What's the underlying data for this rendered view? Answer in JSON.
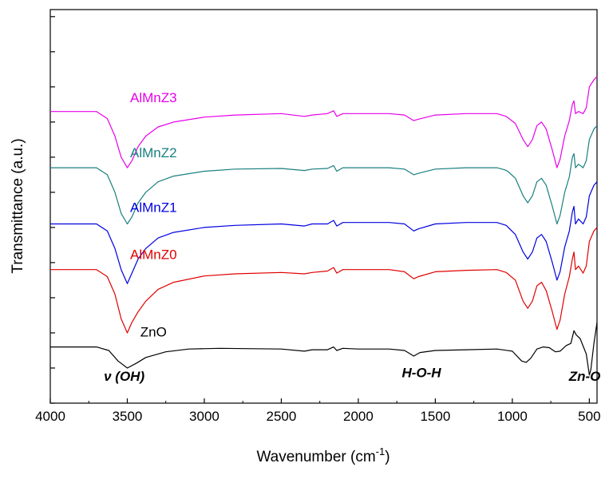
{
  "chart_data": {
    "type": "line",
    "title": "",
    "xlabel": "Wavenumber (cm",
    "xlabel_sup": "-1",
    "xlabel_end": ")",
    "ylabel": "Transmittance (a.u.)",
    "xlim": [
      4000,
      450
    ],
    "x_reversed": true,
    "x_ticks": [
      4000,
      3500,
      3000,
      2500,
      2000,
      1500,
      1000,
      500
    ],
    "x_tick_labels": [
      "4000",
      "3500",
      "3000",
      "2500",
      "2000",
      "1500",
      "1000",
      "500"
    ],
    "ylim": [
      0,
      5.6
    ],
    "y_ticks": [
      0,
      0.5,
      1,
      1.5,
      2,
      2.5,
      3,
      3.5,
      4,
      4.5,
      5,
      5.5
    ],
    "y_tick_labels": false,
    "grid": false,
    "legend": "inline labels",
    "annotations": [
      {
        "text": "ν (OH)",
        "x": 3520,
        "y": 0.32
      },
      {
        "text": "H-O-H",
        "x": 1590,
        "y": 0.37
      },
      {
        "text": "Zn-O",
        "x": 530,
        "y": 0.32
      }
    ],
    "series": [
      {
        "name": "ZnO",
        "color": "#000000",
        "label_x": 3330,
        "label_y": 0.95,
        "points": [
          [
            4000,
            0.8
          ],
          [
            3700,
            0.8
          ],
          [
            3620,
            0.75
          ],
          [
            3560,
            0.6
          ],
          [
            3500,
            0.5
          ],
          [
            3440,
            0.57
          ],
          [
            3380,
            0.65
          ],
          [
            3250,
            0.73
          ],
          [
            3100,
            0.77
          ],
          [
            2900,
            0.78
          ],
          [
            2500,
            0.77
          ],
          [
            2350,
            0.74
          ],
          [
            2300,
            0.76
          ],
          [
            2200,
            0.76
          ],
          [
            2160,
            0.8
          ],
          [
            2140,
            0.75
          ],
          [
            2100,
            0.78
          ],
          [
            2000,
            0.77
          ],
          [
            1800,
            0.77
          ],
          [
            1700,
            0.75
          ],
          [
            1640,
            0.67
          ],
          [
            1600,
            0.72
          ],
          [
            1500,
            0.75
          ],
          [
            1300,
            0.76
          ],
          [
            1100,
            0.77
          ],
          [
            1000,
            0.74
          ],
          [
            940,
            0.6
          ],
          [
            910,
            0.58
          ],
          [
            880,
            0.64
          ],
          [
            840,
            0.77
          ],
          [
            800,
            0.8
          ],
          [
            760,
            0.79
          ],
          [
            720,
            0.73
          ],
          [
            690,
            0.74
          ],
          [
            650,
            0.82
          ],
          [
            620,
            0.85
          ],
          [
            600,
            1.03
          ],
          [
            585,
            0.97
          ],
          [
            560,
            0.92
          ],
          [
            520,
            0.7
          ],
          [
            500,
            0.4
          ],
          [
            490,
            0.48
          ],
          [
            470,
            0.85
          ],
          [
            450,
            1.15
          ]
        ]
      },
      {
        "name": "AlMnZ0",
        "color": "#e00000",
        "label_x": 3330,
        "label_y": 2.05,
        "points": [
          [
            4000,
            1.9
          ],
          [
            3700,
            1.9
          ],
          [
            3630,
            1.8
          ],
          [
            3580,
            1.55
          ],
          [
            3540,
            1.2
          ],
          [
            3500,
            1.0
          ],
          [
            3470,
            1.15
          ],
          [
            3430,
            1.3
          ],
          [
            3380,
            1.45
          ],
          [
            3300,
            1.62
          ],
          [
            3200,
            1.72
          ],
          [
            3000,
            1.81
          ],
          [
            2800,
            1.84
          ],
          [
            2500,
            1.86
          ],
          [
            2350,
            1.84
          ],
          [
            2300,
            1.86
          ],
          [
            2200,
            1.88
          ],
          [
            2160,
            1.93
          ],
          [
            2140,
            1.85
          ],
          [
            2100,
            1.9
          ],
          [
            2000,
            1.9
          ],
          [
            1800,
            1.9
          ],
          [
            1700,
            1.87
          ],
          [
            1640,
            1.77
          ],
          [
            1610,
            1.8
          ],
          [
            1500,
            1.87
          ],
          [
            1300,
            1.89
          ],
          [
            1100,
            1.9
          ],
          [
            1040,
            1.86
          ],
          [
            980,
            1.75
          ],
          [
            930,
            1.45
          ],
          [
            900,
            1.35
          ],
          [
            870,
            1.45
          ],
          [
            840,
            1.67
          ],
          [
            810,
            1.72
          ],
          [
            780,
            1.6
          ],
          [
            740,
            1.3
          ],
          [
            710,
            1.05
          ],
          [
            690,
            1.18
          ],
          [
            660,
            1.55
          ],
          [
            630,
            1.8
          ],
          [
            610,
            2.05
          ],
          [
            600,
            2.15
          ],
          [
            590,
            1.9
          ],
          [
            570,
            1.95
          ],
          [
            540,
            1.85
          ],
          [
            520,
            1.95
          ],
          [
            500,
            2.3
          ],
          [
            470,
            2.45
          ],
          [
            450,
            2.5
          ]
        ]
      },
      {
        "name": "AlMnZ1",
        "color": "#0000e0",
        "label_x": 3330,
        "label_y": 2.72,
        "points": [
          [
            4000,
            2.55
          ],
          [
            3700,
            2.55
          ],
          [
            3630,
            2.45
          ],
          [
            3580,
            2.2
          ],
          [
            3540,
            1.9
          ],
          [
            3500,
            1.7
          ],
          [
            3470,
            1.85
          ],
          [
            3430,
            2.05
          ],
          [
            3380,
            2.2
          ],
          [
            3300,
            2.35
          ],
          [
            3200,
            2.43
          ],
          [
            3000,
            2.5
          ],
          [
            2800,
            2.53
          ],
          [
            2500,
            2.55
          ],
          [
            2350,
            2.52
          ],
          [
            2300,
            2.55
          ],
          [
            2200,
            2.55
          ],
          [
            2160,
            2.6
          ],
          [
            2140,
            2.52
          ],
          [
            2100,
            2.57
          ],
          [
            2000,
            2.57
          ],
          [
            1800,
            2.57
          ],
          [
            1700,
            2.55
          ],
          [
            1640,
            2.45
          ],
          [
            1610,
            2.48
          ],
          [
            1500,
            2.55
          ],
          [
            1300,
            2.57
          ],
          [
            1100,
            2.57
          ],
          [
            1040,
            2.53
          ],
          [
            980,
            2.4
          ],
          [
            930,
            2.15
          ],
          [
            900,
            2.05
          ],
          [
            870,
            2.15
          ],
          [
            840,
            2.35
          ],
          [
            810,
            2.4
          ],
          [
            780,
            2.3
          ],
          [
            740,
            2.0
          ],
          [
            710,
            1.75
          ],
          [
            690,
            1.87
          ],
          [
            660,
            2.22
          ],
          [
            630,
            2.45
          ],
          [
            610,
            2.72
          ],
          [
            600,
            2.8
          ],
          [
            590,
            2.55
          ],
          [
            570,
            2.62
          ],
          [
            540,
            2.55
          ],
          [
            520,
            2.65
          ],
          [
            500,
            2.95
          ],
          [
            470,
            3.1
          ],
          [
            450,
            3.15
          ]
        ]
      },
      {
        "name": "AlMnZ2",
        "color": "#1a7f7f",
        "label_x": 3330,
        "label_y": 3.5,
        "points": [
          [
            4000,
            3.35
          ],
          [
            3700,
            3.35
          ],
          [
            3630,
            3.25
          ],
          [
            3580,
            3.0
          ],
          [
            3540,
            2.7
          ],
          [
            3500,
            2.55
          ],
          [
            3470,
            2.65
          ],
          [
            3430,
            2.85
          ],
          [
            3380,
            3.0
          ],
          [
            3300,
            3.15
          ],
          [
            3200,
            3.23
          ],
          [
            3000,
            3.3
          ],
          [
            2800,
            3.33
          ],
          [
            2500,
            3.34
          ],
          [
            2350,
            3.31
          ],
          [
            2300,
            3.33
          ],
          [
            2200,
            3.34
          ],
          [
            2160,
            3.38
          ],
          [
            2140,
            3.3
          ],
          [
            2100,
            3.35
          ],
          [
            2000,
            3.35
          ],
          [
            1800,
            3.35
          ],
          [
            1700,
            3.33
          ],
          [
            1640,
            3.25
          ],
          [
            1610,
            3.27
          ],
          [
            1500,
            3.33
          ],
          [
            1300,
            3.35
          ],
          [
            1100,
            3.35
          ],
          [
            1050,
            3.32
          ],
          [
            1030,
            3.3
          ],
          [
            980,
            3.2
          ],
          [
            930,
            2.95
          ],
          [
            900,
            2.85
          ],
          [
            870,
            2.95
          ],
          [
            840,
            3.15
          ],
          [
            810,
            3.2
          ],
          [
            780,
            3.1
          ],
          [
            740,
            2.8
          ],
          [
            710,
            2.55
          ],
          [
            690,
            2.67
          ],
          [
            660,
            3.0
          ],
          [
            630,
            3.22
          ],
          [
            610,
            3.5
          ],
          [
            600,
            3.55
          ],
          [
            590,
            3.35
          ],
          [
            570,
            3.4
          ],
          [
            540,
            3.35
          ],
          [
            520,
            3.45
          ],
          [
            500,
            3.75
          ],
          [
            470,
            3.9
          ],
          [
            450,
            3.95
          ]
        ]
      },
      {
        "name": "AlMnZ3",
        "color": "#e800e8",
        "label_x": 3330,
        "label_y": 4.28,
        "points": [
          [
            4000,
            4.15
          ],
          [
            3700,
            4.15
          ],
          [
            3630,
            4.05
          ],
          [
            3580,
            3.8
          ],
          [
            3540,
            3.5
          ],
          [
            3500,
            3.35
          ],
          [
            3470,
            3.45
          ],
          [
            3430,
            3.65
          ],
          [
            3380,
            3.8
          ],
          [
            3300,
            3.93
          ],
          [
            3200,
            4.0
          ],
          [
            3000,
            4.07
          ],
          [
            2800,
            4.1
          ],
          [
            2500,
            4.12
          ],
          [
            2350,
            4.08
          ],
          [
            2300,
            4.1
          ],
          [
            2200,
            4.12
          ],
          [
            2160,
            4.16
          ],
          [
            2140,
            4.08
          ],
          [
            2100,
            4.12
          ],
          [
            2000,
            4.12
          ],
          [
            1800,
            4.12
          ],
          [
            1700,
            4.1
          ],
          [
            1640,
            4.02
          ],
          [
            1610,
            4.04
          ],
          [
            1500,
            4.1
          ],
          [
            1300,
            4.12
          ],
          [
            1100,
            4.12
          ],
          [
            1040,
            4.08
          ],
          [
            980,
            3.98
          ],
          [
            930,
            3.75
          ],
          [
            900,
            3.65
          ],
          [
            870,
            3.75
          ],
          [
            840,
            3.95
          ],
          [
            810,
            4.0
          ],
          [
            780,
            3.9
          ],
          [
            740,
            3.6
          ],
          [
            710,
            3.35
          ],
          [
            690,
            3.47
          ],
          [
            660,
            3.8
          ],
          [
            630,
            4.02
          ],
          [
            610,
            4.25
          ],
          [
            600,
            4.3
          ],
          [
            590,
            4.12
          ],
          [
            570,
            4.15
          ],
          [
            540,
            4.12
          ],
          [
            520,
            4.2
          ],
          [
            500,
            4.5
          ],
          [
            470,
            4.6
          ],
          [
            450,
            4.65
          ]
        ]
      }
    ]
  }
}
